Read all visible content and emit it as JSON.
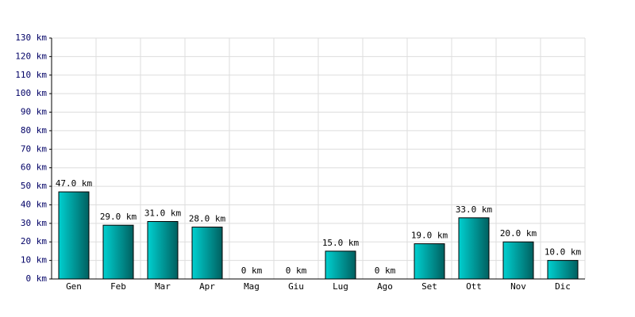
{
  "chart_data": {
    "type": "bar",
    "categories": [
      "Gen",
      "Feb",
      "Mar",
      "Apr",
      "Mag",
      "Giu",
      "Lug",
      "Ago",
      "Set",
      "Ott",
      "Nov",
      "Dic"
    ],
    "values": [
      47,
      29,
      31,
      28,
      0,
      0,
      15,
      0,
      19,
      33,
      20,
      10
    ],
    "value_labels": [
      "47.0 km",
      "29.0 km",
      "31.0 km",
      "28.0 km",
      "0 km",
      "0 km",
      "15.0 km",
      "0 km",
      "19.0 km",
      "33.0 km",
      "20.0 km",
      "10.0 km"
    ],
    "color": "#00d0d0",
    "ylim": [
      0,
      130
    ],
    "yticks": [
      {
        "value": 0,
        "label": "0 km"
      },
      {
        "value": 10,
        "label": "10 km"
      },
      {
        "value": 20,
        "label": "20 km"
      },
      {
        "value": 30,
        "label": "30 km"
      },
      {
        "value": 40,
        "label": "40 km"
      },
      {
        "value": 50,
        "label": "50 km"
      },
      {
        "value": 60,
        "label": "60 km"
      },
      {
        "value": 70,
        "label": "70 km"
      },
      {
        "value": 80,
        "label": "80 km"
      },
      {
        "value": 90,
        "label": "90 km"
      },
      {
        "value": 100,
        "label": "100 km"
      },
      {
        "value": 110,
        "label": "110 km"
      },
      {
        "value": 120,
        "label": "120 km"
      },
      {
        "value": 130,
        "label": "130 km"
      }
    ],
    "grid": true
  }
}
